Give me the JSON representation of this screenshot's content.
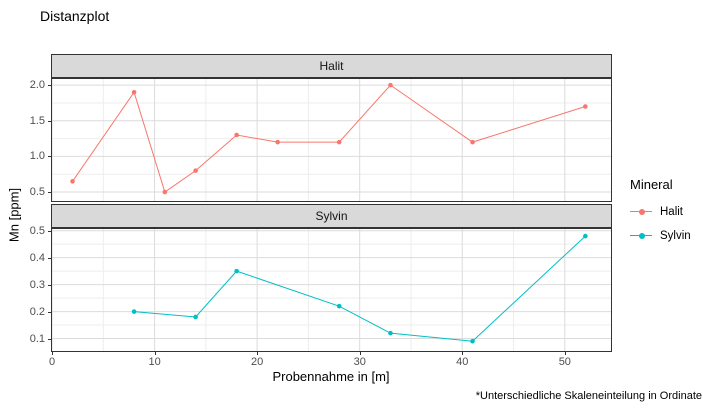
{
  "chart_data": {
    "type": "line",
    "title": "Distanzplot",
    "xlabel": "Probennahme in [m]",
    "ylabel": "Mn [ppm]",
    "footnote": "*Unterschiedliche Skaleneinteilung in Ordinate",
    "legend": {
      "title": "Mineral",
      "position": "right",
      "entries": [
        {
          "label": "Halit",
          "color": "#F8766D"
        },
        {
          "label": "Sylvin",
          "color": "#00BFC4"
        }
      ]
    },
    "x_ticks": [
      0,
      10,
      20,
      30,
      40,
      50
    ],
    "x_minor_ticks": [
      5,
      15,
      25,
      35,
      45
    ],
    "xlim": [
      -0.1,
      54.6
    ],
    "grid": "major+minor",
    "facets": [
      {
        "name": "Halit",
        "color": "#F8766D",
        "x": [
          2,
          8,
          11,
          14,
          18,
          22,
          28,
          33,
          41,
          52
        ],
        "y": [
          0.65,
          1.9,
          0.5,
          0.8,
          1.3,
          1.2,
          1.2,
          2.0,
          1.2,
          1.7
        ],
        "y_ticks": [
          0.5,
          1.0,
          1.5,
          2.0
        ],
        "ylim": [
          0.36,
          2.1
        ]
      },
      {
        "name": "Sylvin",
        "color": "#00BFC4",
        "x": [
          8,
          14,
          18,
          28,
          33,
          41,
          52
        ],
        "y": [
          0.2,
          0.18,
          0.35,
          0.22,
          0.12,
          0.09,
          0.48
        ],
        "y_ticks": [
          0.1,
          0.2,
          0.3,
          0.4,
          0.5
        ],
        "ylim": [
          0.05,
          0.51
        ]
      }
    ],
    "style": {
      "strip_fill": "#D9D9D9",
      "panel_border": "#333333",
      "grid_major": "#DBDBDB",
      "grid_minor": "#EDEDED",
      "tick_label_color": "#4D4D4D"
    }
  }
}
